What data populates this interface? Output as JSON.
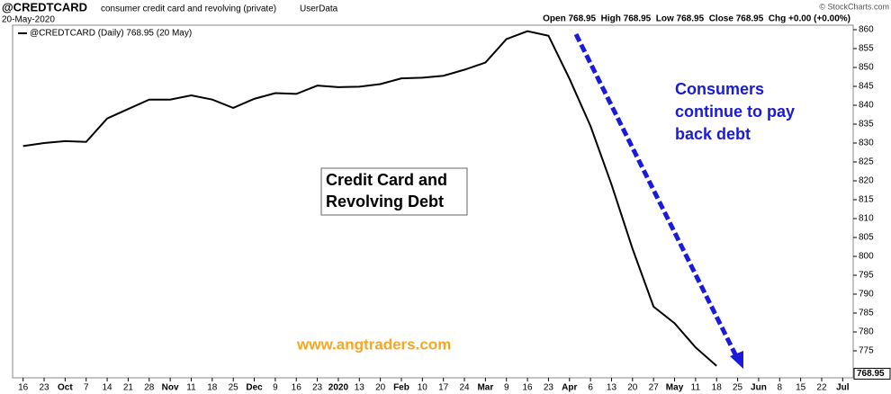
{
  "chart_data": {
    "type": "line",
    "title": "@CREDTCARD",
    "subtitle": "consumer credit card and revolving (private)",
    "source_tag": "UserData",
    "date": "20-May-2020",
    "ohlc": "Open 768.95  High 768.95  Low 768.95  Close 768.95  Chg +0.00 (+0.00%)",
    "copyright": "© StockCharts.com",
    "legend_label": "@CREDTCARD (Daily) 768.95 (20 May)",
    "last_value": 768.95,
    "annotations": {
      "box": [
        "Credit Card and",
        "Revolving Debt"
      ],
      "note": [
        "Consumers",
        "continue to pay",
        "back debt"
      ],
      "website": "www.angtraders.com"
    },
    "categories": [
      "16",
      "23",
      "Oct",
      "7",
      "14",
      "21",
      "28",
      "Nov",
      "11",
      "18",
      "25",
      "Dec",
      "9",
      "16",
      "23",
      "2020",
      "13",
      "20",
      "Feb",
      "10",
      "17",
      "24",
      "Mar",
      "9",
      "16",
      "23",
      "Apr",
      "6",
      "13",
      "20",
      "27",
      "May",
      "11",
      "18",
      "25",
      "Jun",
      "8",
      "15",
      "22",
      "Jul"
    ],
    "series": [
      {
        "name": "@CREDTCARD",
        "color": "#000000",
        "values": [
          829.2,
          830,
          830.5,
          830.3,
          836.5,
          839,
          841.5,
          841.5,
          842.6,
          841.5,
          839.3,
          841.7,
          843.2,
          843,
          845.2,
          844.8,
          844.9,
          845.6,
          847.1,
          847.3,
          847.8,
          849.4,
          851.3,
          857.5,
          859.6,
          858.4,
          847,
          834.5,
          819,
          802,
          786.7,
          782.3,
          775.9,
          771,
          null,
          null,
          null,
          null,
          null,
          null
        ]
      }
    ],
    "ylim": [
      767.86,
      861.19
    ],
    "yticks": [
      775,
      780,
      785,
      790,
      795,
      800,
      805,
      810,
      815,
      820,
      825,
      830,
      835,
      840,
      845,
      850,
      855,
      860
    ],
    "grid": false,
    "annotation_color": "#1a1adb",
    "website_color": "#f5a623"
  }
}
